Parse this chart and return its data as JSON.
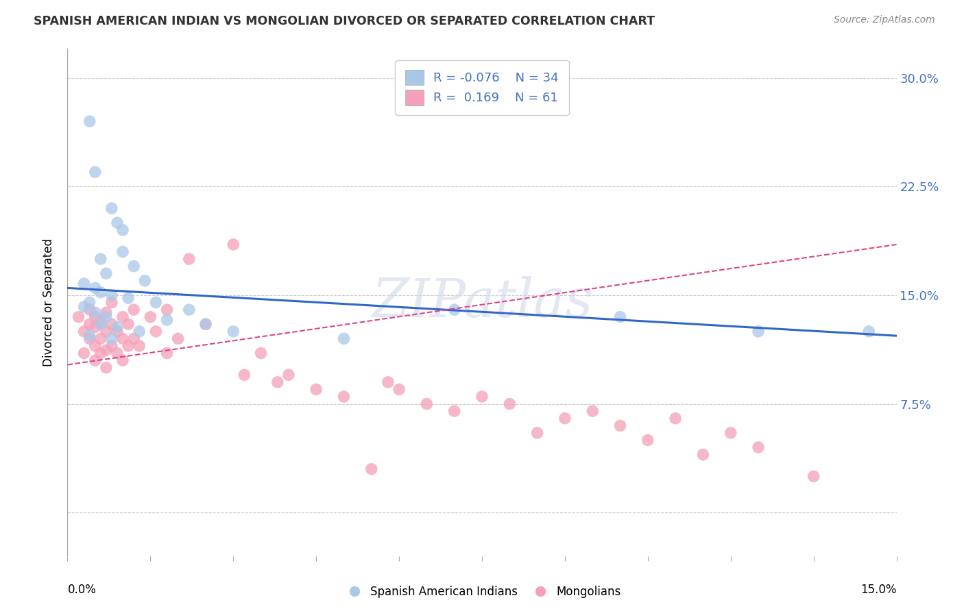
{
  "title": "SPANISH AMERICAN INDIAN VS MONGOLIAN DIVORCED OR SEPARATED CORRELATION CHART",
  "source": "Source: ZipAtlas.com",
  "ylabel": "Divorced or Separated",
  "xlim": [
    0.0,
    15.0
  ],
  "ylim": [
    -3.0,
    32.0
  ],
  "yticks": [
    0.0,
    7.5,
    15.0,
    22.5,
    30.0
  ],
  "ytick_labels": [
    "",
    "7.5%",
    "15.0%",
    "22.5%",
    "30.0%"
  ],
  "watermark": "ZIPatlas",
  "blue_color": "#a8c8e8",
  "pink_color": "#f4a0b8",
  "blue_line_color": "#3366cc",
  "pink_line_color": "#dd4488",
  "grid_color": "#cccccc",
  "background_color": "#ffffff",
  "blue_scatter": [
    [
      0.4,
      27.0
    ],
    [
      0.5,
      23.5
    ],
    [
      0.8,
      21.0
    ],
    [
      0.9,
      20.0
    ],
    [
      1.0,
      19.5
    ],
    [
      1.0,
      18.0
    ],
    [
      0.6,
      17.5
    ],
    [
      1.2,
      17.0
    ],
    [
      0.7,
      16.5
    ],
    [
      1.4,
      16.0
    ],
    [
      0.3,
      15.8
    ],
    [
      0.5,
      15.5
    ],
    [
      0.6,
      15.2
    ],
    [
      0.8,
      15.0
    ],
    [
      1.1,
      14.8
    ],
    [
      0.4,
      14.5
    ],
    [
      1.6,
      14.5
    ],
    [
      0.3,
      14.2
    ],
    [
      2.2,
      14.0
    ],
    [
      0.5,
      13.8
    ],
    [
      0.7,
      13.5
    ],
    [
      1.8,
      13.3
    ],
    [
      0.6,
      13.0
    ],
    [
      2.5,
      13.0
    ],
    [
      0.9,
      12.8
    ],
    [
      1.3,
      12.5
    ],
    [
      3.0,
      12.5
    ],
    [
      0.4,
      12.2
    ],
    [
      0.8,
      12.0
    ],
    [
      5.0,
      12.0
    ],
    [
      7.0,
      14.0
    ],
    [
      10.0,
      13.5
    ],
    [
      12.5,
      12.5
    ],
    [
      14.5,
      12.5
    ]
  ],
  "pink_scatter": [
    [
      0.2,
      13.5
    ],
    [
      0.3,
      12.5
    ],
    [
      0.3,
      11.0
    ],
    [
      0.4,
      14.0
    ],
    [
      0.4,
      13.0
    ],
    [
      0.4,
      12.0
    ],
    [
      0.5,
      13.5
    ],
    [
      0.5,
      12.8
    ],
    [
      0.5,
      11.5
    ],
    [
      0.5,
      10.5
    ],
    [
      0.6,
      13.2
    ],
    [
      0.6,
      12.0
    ],
    [
      0.6,
      11.0
    ],
    [
      0.7,
      13.8
    ],
    [
      0.7,
      12.5
    ],
    [
      0.7,
      11.2
    ],
    [
      0.7,
      10.0
    ],
    [
      0.8,
      14.5
    ],
    [
      0.8,
      13.0
    ],
    [
      0.8,
      11.5
    ],
    [
      0.9,
      12.5
    ],
    [
      0.9,
      11.0
    ],
    [
      1.0,
      13.5
    ],
    [
      1.0,
      12.0
    ],
    [
      1.0,
      10.5
    ],
    [
      1.1,
      13.0
    ],
    [
      1.1,
      11.5
    ],
    [
      1.2,
      14.0
    ],
    [
      1.2,
      12.0
    ],
    [
      1.3,
      11.5
    ],
    [
      1.5,
      13.5
    ],
    [
      1.6,
      12.5
    ],
    [
      1.8,
      14.0
    ],
    [
      1.8,
      11.0
    ],
    [
      2.0,
      12.0
    ],
    [
      2.2,
      17.5
    ],
    [
      2.5,
      13.0
    ],
    [
      3.0,
      18.5
    ],
    [
      3.2,
      9.5
    ],
    [
      3.5,
      11.0
    ],
    [
      3.8,
      9.0
    ],
    [
      4.0,
      9.5
    ],
    [
      4.5,
      8.5
    ],
    [
      5.0,
      8.0
    ],
    [
      5.5,
      3.0
    ],
    [
      5.8,
      9.0
    ],
    [
      6.0,
      8.5
    ],
    [
      6.5,
      7.5
    ],
    [
      7.0,
      7.0
    ],
    [
      7.5,
      8.0
    ],
    [
      8.0,
      7.5
    ],
    [
      8.5,
      5.5
    ],
    [
      9.0,
      6.5
    ],
    [
      9.5,
      7.0
    ],
    [
      10.0,
      6.0
    ],
    [
      10.5,
      5.0
    ],
    [
      11.0,
      6.5
    ],
    [
      11.5,
      4.0
    ],
    [
      12.0,
      5.5
    ],
    [
      12.5,
      4.5
    ],
    [
      13.5,
      2.5
    ]
  ]
}
